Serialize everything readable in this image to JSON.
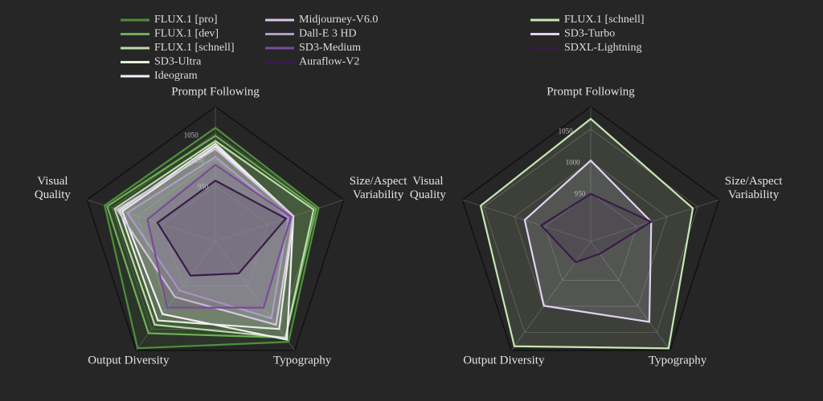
{
  "chart_data": [
    {
      "type": "radar",
      "categories": [
        "Prompt Following",
        "Size/Aspect Variability",
        "Typography",
        "Output Diversity",
        "Visual Quality"
      ],
      "rlim": [
        845,
        1100
      ],
      "rticks": [
        950,
        1000,
        1050
      ],
      "series": [
        {
          "name": "FLUX.1 [pro]",
          "color": "#4e8f3c",
          "values": [
            1060,
            1050,
            1080,
            1095,
            1065
          ]
        },
        {
          "name": "FLUX.1 [dev]",
          "color": "#6fae57",
          "values": [
            1045,
            1045,
            1070,
            1060,
            1060
          ]
        },
        {
          "name": "FLUX.1 [schnell]",
          "color": "#b9dca6",
          "values": [
            1035,
            1040,
            1070,
            1040,
            1045
          ]
        },
        {
          "name": "SD3-Ultra",
          "color": "#e3f0dc",
          "values": [
            1030,
            1000,
            1050,
            1030,
            1035
          ]
        },
        {
          "name": "Ideogram",
          "color": "#f4eefa",
          "values": [
            1025,
            1000,
            1075,
            1015,
            1030
          ]
        },
        {
          "name": "Midjourney-V6.0",
          "color": "#d8c4ea",
          "values": [
            1020,
            1000,
            1040,
            975,
            1040
          ]
        },
        {
          "name": "Dall-E 3 HD",
          "color": "#b09ccb",
          "values": [
            1005,
            990,
            1025,
            960,
            1020
          ]
        },
        {
          "name": "SD3-Medium",
          "color": "#7a4a9c",
          "values": [
            990,
            995,
            1000,
            1000,
            980
          ]
        },
        {
          "name": "Auraflow-V2",
          "color": "#3a1a4c",
          "values": [
            960,
            985,
            920,
            925,
            960
          ]
        }
      ]
    },
    {
      "type": "radar",
      "categories": [
        "Prompt Following",
        "Size/Aspect Variability",
        "Typography",
        "Output Diversity",
        "Visual Quality"
      ],
      "rlim": [
        875,
        1085
      ],
      "rticks": [
        950,
        1000,
        1050
      ],
      "series": [
        {
          "name": "FLUX.1 [schnell]",
          "color": "#c6e6b2",
          "values": [
            1066,
            1042,
            1081,
            1077,
            1055
          ]
        },
        {
          "name": "SD3-Turbo",
          "color": "#e2d2f2",
          "values": [
            1001,
            974,
            1030,
            999,
            983
          ]
        },
        {
          "name": "SDXL-Lightning",
          "color": "#3a1a4c",
          "values": [
            949,
            974,
            899,
            915,
            956
          ]
        }
      ]
    }
  ]
}
